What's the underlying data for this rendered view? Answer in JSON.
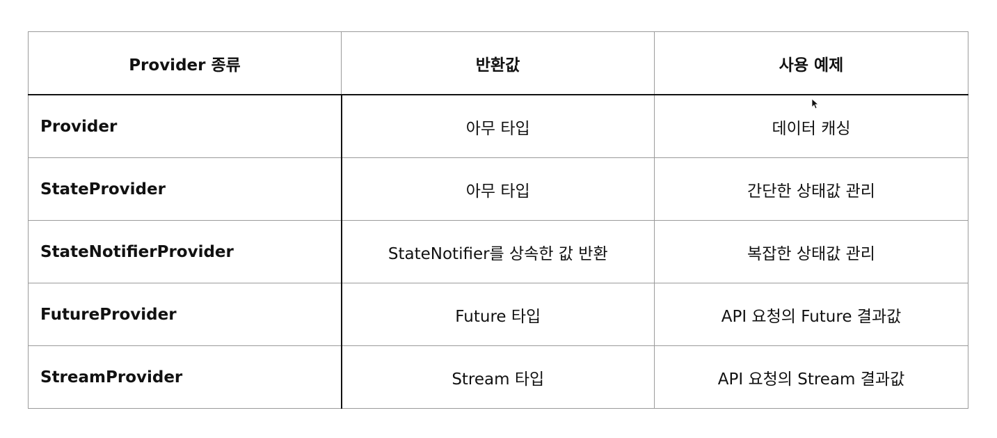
{
  "table": {
    "headers": [
      "Provider 종류",
      "반환값",
      "사용 예제"
    ],
    "rows": [
      {
        "name": "Provider",
        "returns": "아무 타입",
        "example": "데이터 캐싱"
      },
      {
        "name": "StateProvider",
        "returns": "아무 타입",
        "example": "간단한 상태값 관리"
      },
      {
        "name": "StateNotifierProvider",
        "returns": "StateNotifier를 상속한 값 반환",
        "example": "복잡한 상태값 관리"
      },
      {
        "name": "FutureProvider",
        "returns": "Future 타입",
        "example": "API 요청의 Future 결과값"
      },
      {
        "name": "StreamProvider",
        "returns": "Stream 타입",
        "example": "API 요청의 Stream 결과값"
      }
    ]
  },
  "cursor": {
    "icon": "mouse-pointer-icon"
  }
}
